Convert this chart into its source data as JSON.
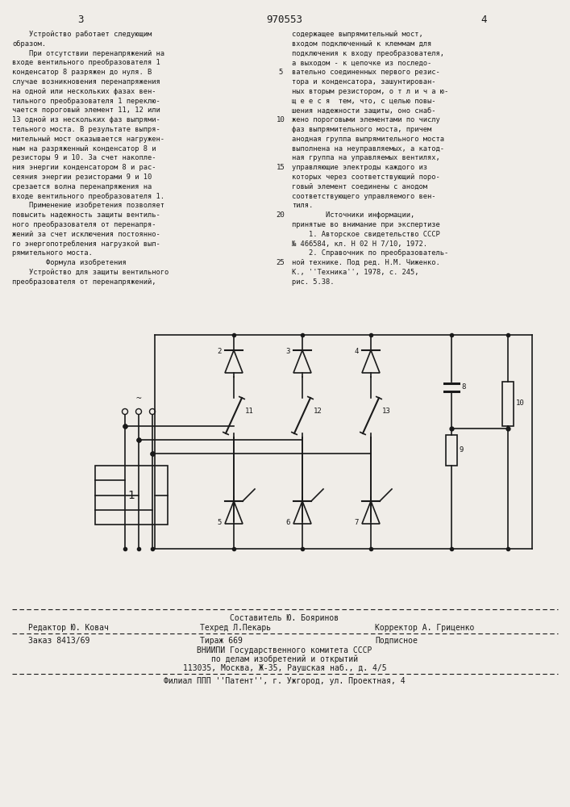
{
  "title": "970553",
  "page_left": "3",
  "page_right": "4",
  "bg_color": "#f0ede8",
  "text_color": "#1a1a1a",
  "left_column_text": [
    "    Устройство работает следующим",
    "образом.",
    "    При отсутствии перенапряжений на",
    "входе вентильного преобразователя 1",
    "конденсатор 8 разряжен до нуля. В",
    "случае возникновения перенапряжения",
    "на одной или нескольких фазах вен-",
    "тильного преобразователя 1 переклю-",
    "чается пороговый элемент 11, 12 или",
    "13 одной из нескольких фаз выпрями-",
    "тельного моста. В результате выпря-",
    "мительный мост оказывается нагружен-",
    "ным на разряженный конденсатор 8 и",
    "резисторы 9 и 10. За счет накопле-",
    "ния энергии конденсатором 8 и рас-",
    "сеяния энергии резисторами 9 и 10",
    "срезается волна перенапряжения на",
    "входе вентильного преобразователя 1.",
    "    Применение изобретения позволяет",
    "повысить надежность защиты вентиль-",
    "ного преобразователя от перенапря-",
    "жений за счет исключения постоянно-",
    "го энергопотребления нагрузкой вып-",
    "рямительного моста.",
    "        Формула изобретения",
    "    Устройство для защиты вентильного",
    "преобразователя от перенапряжений,"
  ],
  "right_column_text": [
    "содержащее выпрямительный мост,",
    "входом подключенный к клеммам для",
    "подключения к входу преобразователя,",
    "а выходом - к цепочке из последо-",
    "вательно соединенных первого резис-",
    "тора и конденсатора, зашунтирован-",
    "ных вторым резистором, о т л и ч а ю-",
    "щ е е с я  тем, что, с целью повы-",
    "шения надежности защиты, оно снаб-",
    "жено пороговыми элементами по числу",
    "фаз выпрямительного моста, причем",
    "анодная группа выпрямительного моста",
    "выполнена на неуправляемых, а катод-",
    "ная группа на управляемых вентилях,",
    "управляющие электроды каждого из",
    "которых через соответствующий поро-",
    "говый элемент соединены с анодом",
    "соответствующего управляемого вен-",
    "тиля.",
    "        Источники информации,",
    "принятые во внимание при экспертизе",
    "    1. Авторское свидетельство СССР",
    "№ 466584, кл. Н 02 Н 7/10, 1972.",
    "    2. Справочник по преобразователь-",
    "ной технике. Под ред. Н.М. Чиженко.",
    "К., ''Техника'', 1978, с. 245,",
    "рис. 5.38."
  ],
  "footer_line1": "Составитель Ю. Бояринов",
  "footer_line2_left": "Редактор Ю. Ковач",
  "footer_line2_mid": "Техред Л.Пекарь",
  "footer_line2_right": "Корректор А. Гриценко",
  "footer_line3_left": "Заказ 8413/69",
  "footer_line3_mid": "Тираж 669",
  "footer_line3_right": "Подписное",
  "footer_line4": "ВНИИПИ Государственного комитета СССР",
  "footer_line5": "по делам изобретений и открытий",
  "footer_line6": "113035, Москва, Ж-35, Раушская наб., д. 4/5",
  "footer_line7": "Филиал ППП ''Патент'', г. Ужгород, ул. Проектная, 4"
}
